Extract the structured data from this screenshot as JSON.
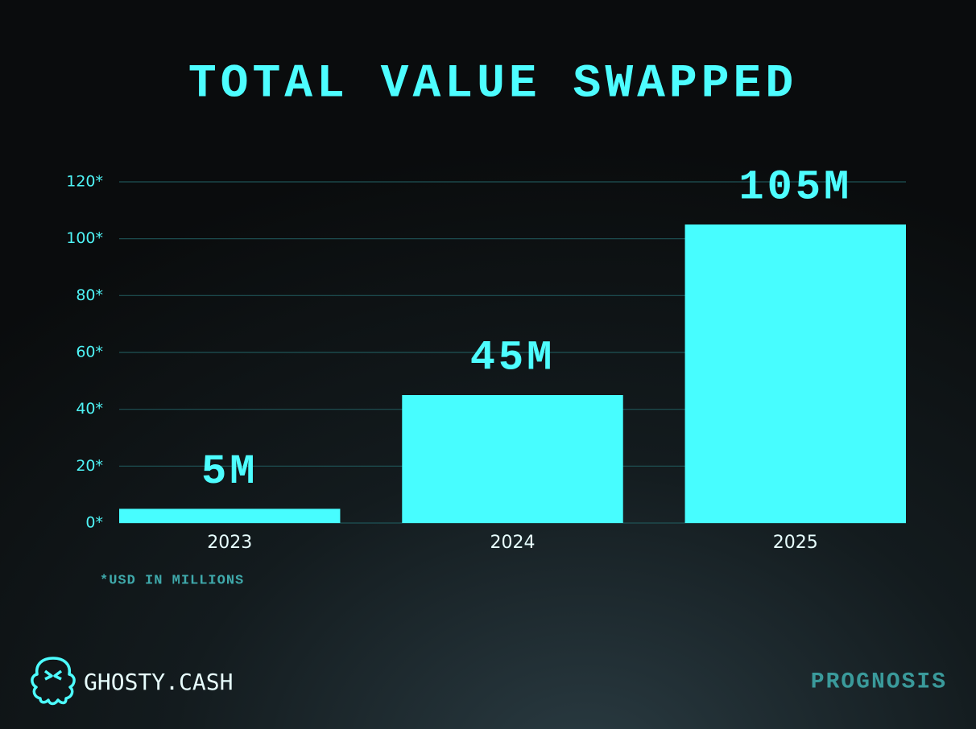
{
  "chart_data": {
    "type": "bar",
    "title": "TOTAL VALUE SWAPPED",
    "categories": [
      "2023",
      "2024",
      "2025"
    ],
    "values": [
      5,
      45,
      105
    ],
    "value_labels": [
      "5M",
      "45M",
      "105M"
    ],
    "color": "#47fdff",
    "ylim": [
      0,
      120
    ],
    "yticks": [
      {
        "value": 0,
        "label": "0*"
      },
      {
        "value": 20,
        "label": "20*"
      },
      {
        "value": 40,
        "label": "40*"
      },
      {
        "value": 60,
        "label": "60*"
      },
      {
        "value": 80,
        "label": "80*"
      },
      {
        "value": 100,
        "label": "100*"
      },
      {
        "value": 120,
        "label": "120*"
      }
    ],
    "grid": true,
    "footnote": "*USD IN MILLIONS"
  },
  "brand": "GHOSTY.CASH",
  "tag": "PROGNOSIS"
}
